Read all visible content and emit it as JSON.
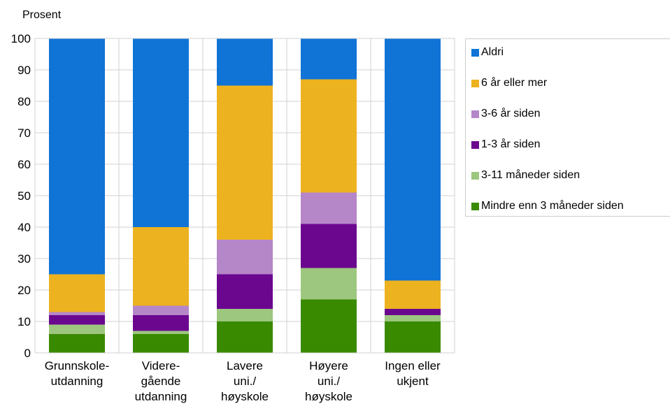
{
  "chart_data": {
    "type": "bar",
    "stacked": true,
    "ylabel": "Prosent",
    "ylim": [
      0,
      100
    ],
    "yticks": [
      0,
      10,
      20,
      30,
      40,
      50,
      60,
      70,
      80,
      90,
      100
    ],
    "grid": true,
    "legend_position": "right",
    "categories": [
      [
        "Grunnskole-",
        "utdanning"
      ],
      [
        "Videre-",
        "gående",
        "utdanning"
      ],
      [
        "Lavere",
        "uni./",
        "høyskole"
      ],
      [
        "Høyere",
        "uni./",
        "høyskole"
      ],
      [
        "Ingen eller",
        "ukjent"
      ]
    ],
    "series": [
      {
        "name": "Mindre enn 3 måneder siden",
        "color": "#3a8a00",
        "values": [
          6,
          6,
          10,
          17,
          10
        ]
      },
      {
        "name": "3-11 måneder siden",
        "color": "#9dc77f",
        "values": [
          3,
          1,
          4,
          10,
          2
        ]
      },
      {
        "name": "1-3 år siden",
        "color": "#6b068f",
        "values": [
          3,
          5,
          11,
          14,
          2
        ]
      },
      {
        "name": "3-6 år siden",
        "color": "#b586c8",
        "values": [
          1,
          3,
          11,
          10,
          0
        ]
      },
      {
        "name": "6 år eller mer",
        "color": "#edb220",
        "values": [
          12,
          25,
          49,
          36,
          9
        ]
      },
      {
        "name": "Aldri",
        "color": "#1073d6",
        "values": [
          75,
          60,
          15,
          13,
          77
        ]
      }
    ]
  }
}
